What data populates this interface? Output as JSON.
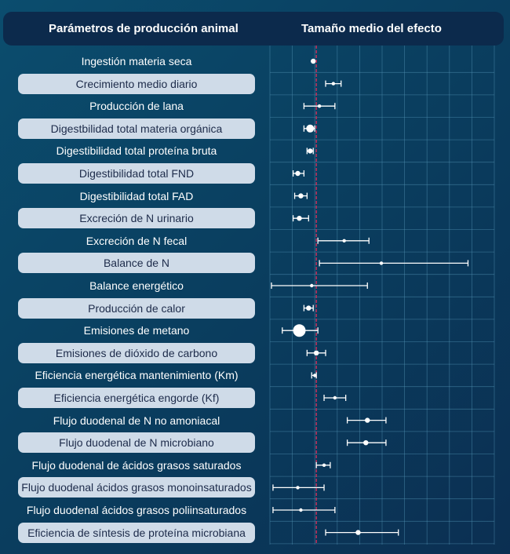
{
  "header": {
    "left_title": "Parámetros de producción animal",
    "right_title": "Tamaño medio del efecto"
  },
  "colors": {
    "background": "#0b4063",
    "header": "#0c2a4c",
    "label_shaded": "#cfdbe8",
    "grid": "#4f8fb0",
    "reference_line": "#c0305a",
    "marker": "#ffffff"
  },
  "chart_data": {
    "type": "forest",
    "title": "Tamaño medio del efecto",
    "xlim": [
      -0.3,
      1.15
    ],
    "reference_line": 0,
    "grid": true,
    "rows": [
      {
        "label": "Ingestión materia seca",
        "mean": -0.02,
        "lower": -0.02,
        "upper": -0.02,
        "weight": 2
      },
      {
        "label": "Crecimiento medio diario",
        "mean": 0.11,
        "lower": 0.06,
        "upper": 0.16,
        "weight": 1
      },
      {
        "label": "Producción de lana",
        "mean": 0.02,
        "lower": -0.08,
        "upper": 0.12,
        "weight": 1
      },
      {
        "label": "Digestbilidad total materia orgánica",
        "mean": -0.04,
        "lower": -0.08,
        "upper": -0.01,
        "weight": 3
      },
      {
        "label": "Digestibilidad total proteína bruta",
        "mean": -0.04,
        "lower": -0.06,
        "upper": -0.02,
        "weight": 2
      },
      {
        "label": "Digestibilidad total FND",
        "mean": -0.12,
        "lower": -0.15,
        "upper": -0.08,
        "weight": 2
      },
      {
        "label": "Digestibilidad total FAD",
        "mean": -0.1,
        "lower": -0.14,
        "upper": -0.06,
        "weight": 2
      },
      {
        "label": "Excreción de N urinario",
        "mean": -0.11,
        "lower": -0.15,
        "upper": -0.05,
        "weight": 2
      },
      {
        "label": "Excreción de N fecal",
        "mean": 0.18,
        "lower": 0.01,
        "upper": 0.34,
        "weight": 1
      },
      {
        "label": "Balance de N",
        "mean": 0.42,
        "lower": 0.02,
        "upper": 0.98,
        "weight": 1
      },
      {
        "label": "Balance energético",
        "mean": -0.03,
        "lower": -0.29,
        "upper": 0.33,
        "weight": 1
      },
      {
        "label": "Producción de calor",
        "mean": -0.05,
        "lower": -0.08,
        "upper": -0.02,
        "weight": 2
      },
      {
        "label": "Emisiones de metano",
        "mean": -0.11,
        "lower": -0.22,
        "upper": 0.01,
        "weight": 4
      },
      {
        "label": "Emisiones de dióxido de carbono",
        "mean": 0,
        "lower": -0.06,
        "upper": 0.06,
        "weight": 2
      },
      {
        "label": "Eficiencia energética mantenimiento (Km)",
        "mean": -0.01,
        "lower": -0.03,
        "upper": 0,
        "weight": 1
      },
      {
        "label": "Eficiencia energética engorde (Kf)",
        "mean": 0.12,
        "lower": 0.05,
        "upper": 0.19,
        "weight": 1
      },
      {
        "label": "Flujo duodenal de N no amoniacal",
        "mean": 0.33,
        "lower": 0.2,
        "upper": 0.45,
        "weight": 2
      },
      {
        "label": "Flujo duodenal de N microbiano",
        "mean": 0.32,
        "lower": 0.2,
        "upper": 0.45,
        "weight": 2
      },
      {
        "label": "Flujo duodenal de ácidos grasos saturados",
        "mean": 0.05,
        "lower": 0,
        "upper": 0.09,
        "weight": 1
      },
      {
        "label": "Flujo duodenal ácidos grasos monoinsaturados",
        "mean": -0.12,
        "lower": -0.28,
        "upper": 0.05,
        "weight": 1
      },
      {
        "label": "Flujo duodenal ácidos grasos poliinsaturados",
        "mean": -0.1,
        "lower": -0.28,
        "upper": 0.12,
        "weight": 1
      },
      {
        "label": "Eficiencia de síntesis de proteína microbiana",
        "mean": 0.27,
        "lower": 0.06,
        "upper": 0.53,
        "weight": 2
      }
    ]
  }
}
